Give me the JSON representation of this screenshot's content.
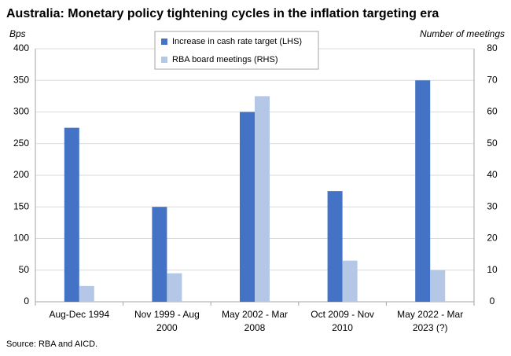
{
  "chart_data": {
    "type": "bar",
    "title": "Australia: Monetary policy tightening cycles in the inflation targeting era",
    "y_label": "Bps",
    "y2_label": "Number of meetings",
    "source": "Source: RBA and AICD.",
    "categories": [
      "Aug-Dec 1994",
      "Nov 1999 - Aug 2000",
      "May 2002 - Mar 2008",
      "Oct 2009 - Nov 2010",
      "May 2022 - Mar 2023 (?)"
    ],
    "series": [
      {
        "name": "Increase in cash rate target (LHS)",
        "color": "#4472c4",
        "values": [
          275,
          150,
          300,
          175,
          350
        ]
      },
      {
        "name": "RBA board meetings (RHS)",
        "color": "#b4c7e7",
        "axis": "y2",
        "values": [
          5,
          9,
          65,
          13,
          10
        ]
      }
    ],
    "ylim": [
      0,
      400
    ],
    "yticks": [
      0,
      50,
      100,
      150,
      200,
      250,
      300,
      350,
      400
    ],
    "y2lim": [
      0,
      80
    ],
    "y2ticks": [
      0,
      10,
      20,
      30,
      40,
      50,
      60,
      70,
      80
    ],
    "grid": true,
    "legend_position": "top"
  }
}
